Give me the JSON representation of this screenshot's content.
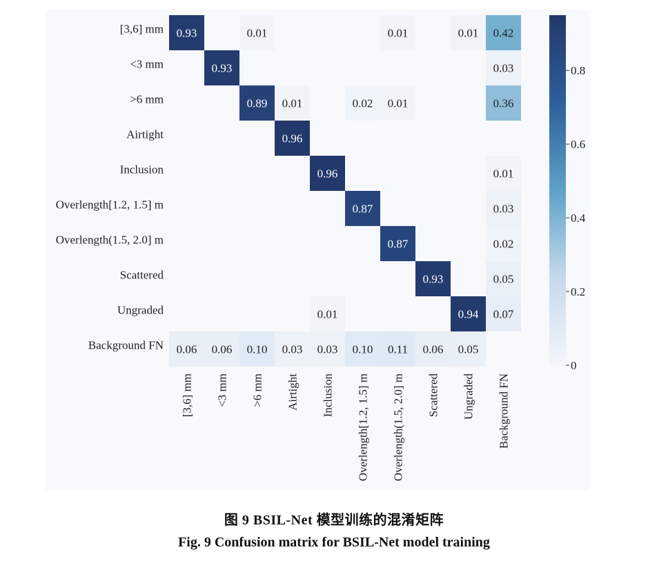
{
  "figure": {
    "caption_cn": "图 9    BSIL-Net 模型训练的混淆矩阵",
    "caption_en": "Fig. 9    Confusion matrix for BSIL-Net model training"
  },
  "chart_data": {
    "type": "heatmap",
    "title": "",
    "xlabel": "",
    "ylabel": "",
    "row_labels": [
      "[3,6] mm",
      "<3 mm",
      ">6 mm",
      "Airtight",
      "Inclusion",
      "Overlength[1.2, 1.5] m",
      "Overlength(1.5, 2.0] m",
      "Scattered",
      "Ungraded",
      "Background FN"
    ],
    "col_labels": [
      "[3,6] mm",
      "<3 mm",
      ">6 mm",
      "Airtight",
      "Inclusion",
      "Overlength[1.2, 1.5] m",
      "Overlength(1.5, 2.0] m",
      "Scattered",
      "Ungraded",
      "Background FN"
    ],
    "values": [
      [
        0.93,
        null,
        0.01,
        null,
        null,
        null,
        0.01,
        null,
        0.01,
        0.42
      ],
      [
        null,
        0.93,
        null,
        null,
        null,
        null,
        null,
        null,
        null,
        0.03
      ],
      [
        null,
        null,
        0.89,
        0.01,
        null,
        0.02,
        0.01,
        null,
        null,
        0.36
      ],
      [
        null,
        null,
        null,
        0.96,
        null,
        null,
        null,
        null,
        null,
        null
      ],
      [
        null,
        null,
        null,
        null,
        0.96,
        null,
        null,
        null,
        null,
        0.01
      ],
      [
        null,
        null,
        null,
        null,
        null,
        0.87,
        null,
        null,
        null,
        0.03
      ],
      [
        null,
        null,
        null,
        null,
        null,
        null,
        0.87,
        null,
        null,
        0.02
      ],
      [
        null,
        null,
        null,
        null,
        null,
        null,
        null,
        0.93,
        null,
        0.05
      ],
      [
        null,
        null,
        null,
        null,
        0.01,
        null,
        null,
        null,
        0.94,
        0.07
      ],
      [
        0.06,
        0.06,
        0.1,
        0.03,
        0.03,
        0.1,
        0.11,
        0.06,
        0.05,
        null
      ]
    ],
    "value_labels": [
      [
        "0.93",
        "",
        "0.01",
        "",
        "",
        "",
        "0.01",
        "",
        "0.01",
        "0.42"
      ],
      [
        "",
        "0.93",
        "",
        "",
        "",
        "",
        "",
        "",
        "",
        "0.03"
      ],
      [
        "",
        "",
        "0.89",
        "0.01",
        "",
        "0.02",
        "0.01",
        "",
        "",
        "0.36"
      ],
      [
        "",
        "",
        "",
        "0.96",
        "",
        "",
        "",
        "",
        "",
        ""
      ],
      [
        "",
        "",
        "",
        "",
        "0.96",
        "",
        "",
        "",
        "",
        "0.01"
      ],
      [
        "",
        "",
        "",
        "",
        "",
        "0.87",
        "",
        "",
        "",
        "0.03"
      ],
      [
        "",
        "",
        "",
        "",
        "",
        "",
        "0.87",
        "",
        "",
        "0.02"
      ],
      [
        "",
        "",
        "",
        "",
        "",
        "",
        "",
        "0.93",
        "",
        "0.05"
      ],
      [
        "",
        "",
        "",
        "",
        "0.01",
        "",
        "",
        "",
        "0.94",
        "0.07"
      ],
      [
        "0.06",
        "0.06",
        "0.10",
        "0.03",
        "0.03",
        "0.10",
        "0.11",
        "0.06",
        "0.05",
        ""
      ]
    ],
    "colorbar": {
      "range": [
        0,
        0.95
      ],
      "ticks": [
        0,
        0.2,
        0.4,
        0.6,
        0.8
      ],
      "tick_labels": [
        "0",
        "0.2",
        "0.4",
        "0.6",
        "0.8"
      ],
      "colormap": [
        "#f3f6fb",
        "#c6d9ec",
        "#5da2c8",
        "#2d5f9c",
        "#23386b"
      ]
    },
    "grid": false,
    "legend": "colorbar-right"
  }
}
